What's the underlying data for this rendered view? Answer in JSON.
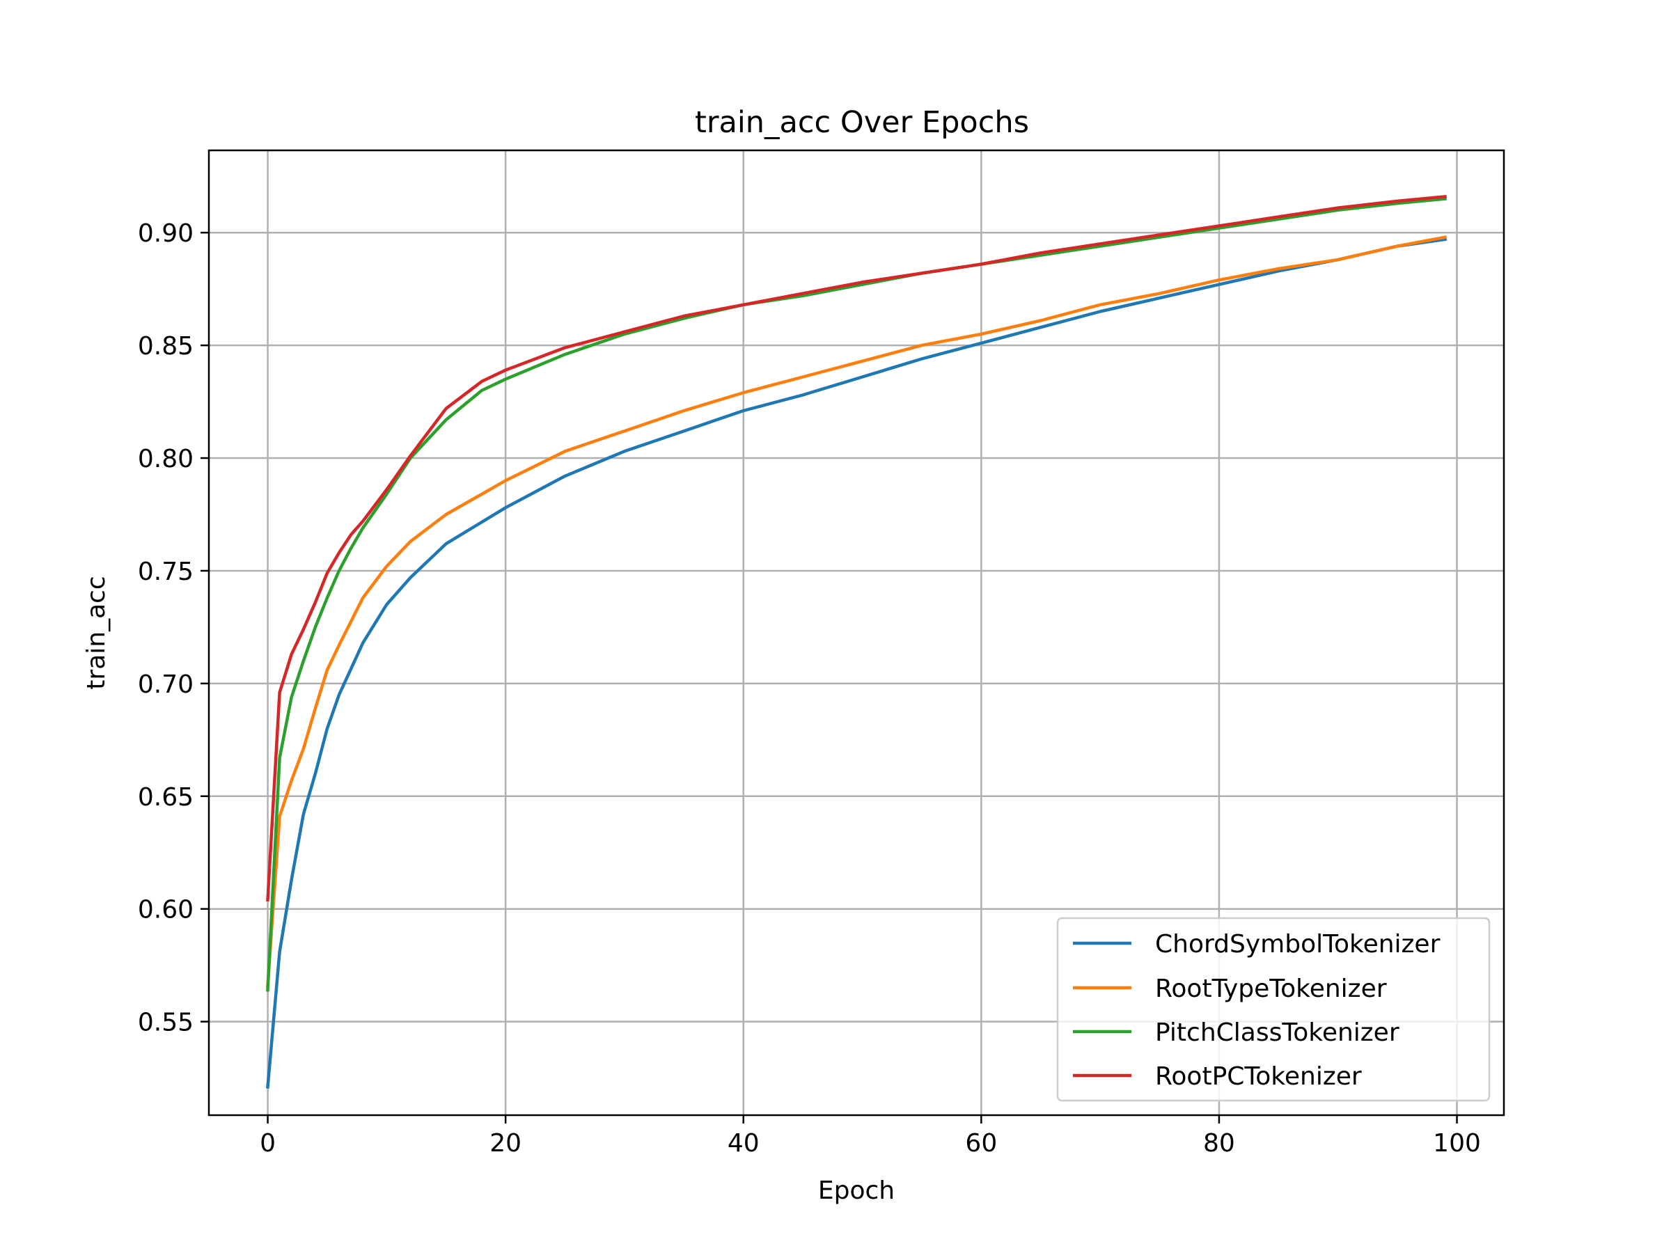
{
  "chart_data": {
    "type": "line",
    "title": "train_acc Over Epochs",
    "xlabel": "Epoch",
    "ylabel": "train_acc",
    "xlim": [
      -4.95,
      103.95
    ],
    "ylim": [
      0.5085,
      0.9365
    ],
    "xticks": [
      0,
      20,
      40,
      60,
      80,
      100
    ],
    "xtick_labels": [
      "0",
      "20",
      "40",
      "60",
      "80",
      "100"
    ],
    "yticks": [
      0.55,
      0.6,
      0.65,
      0.7,
      0.75,
      0.8,
      0.85,
      0.9
    ],
    "ytick_labels": [
      "0.55",
      "0.60",
      "0.65",
      "0.70",
      "0.75",
      "0.80",
      "0.85",
      "0.90"
    ],
    "grid": true,
    "legend_position": "lower-right",
    "series": [
      {
        "name": "ChordSymbolTokenizer",
        "color": "#1f77b4",
        "x": [
          0,
          1,
          2,
          3,
          4,
          5,
          6,
          8,
          10,
          12,
          15,
          20,
          25,
          30,
          35,
          40,
          45,
          50,
          55,
          60,
          65,
          70,
          75,
          80,
          85,
          90,
          95,
          99
        ],
        "y": [
          0.521,
          0.581,
          0.613,
          0.642,
          0.66,
          0.68,
          0.695,
          0.718,
          0.735,
          0.747,
          0.762,
          0.778,
          0.792,
          0.803,
          0.812,
          0.821,
          0.828,
          0.836,
          0.844,
          0.851,
          0.858,
          0.865,
          0.871,
          0.877,
          0.883,
          0.888,
          0.894,
          0.897
        ]
      },
      {
        "name": "RootTypeTokenizer",
        "color": "#ff7f0e",
        "x": [
          0,
          1,
          2,
          3,
          4,
          5,
          6,
          8,
          10,
          12,
          15,
          20,
          25,
          30,
          35,
          40,
          45,
          50,
          55,
          60,
          65,
          70,
          75,
          80,
          85,
          90,
          95,
          99
        ],
        "y": [
          0.566,
          0.641,
          0.657,
          0.671,
          0.689,
          0.706,
          0.717,
          0.738,
          0.752,
          0.763,
          0.775,
          0.79,
          0.803,
          0.812,
          0.821,
          0.829,
          0.836,
          0.843,
          0.85,
          0.855,
          0.861,
          0.868,
          0.873,
          0.879,
          0.884,
          0.888,
          0.894,
          0.898
        ]
      },
      {
        "name": "PitchClassTokenizer",
        "color": "#2ca02c",
        "x": [
          0,
          1,
          2,
          3,
          4,
          5,
          6,
          7,
          8,
          10,
          12,
          15,
          18,
          20,
          25,
          30,
          35,
          40,
          45,
          50,
          55,
          60,
          65,
          70,
          75,
          80,
          85,
          90,
          95,
          99
        ],
        "y": [
          0.564,
          0.667,
          0.694,
          0.71,
          0.725,
          0.738,
          0.75,
          0.76,
          0.769,
          0.784,
          0.8,
          0.817,
          0.83,
          0.835,
          0.846,
          0.855,
          0.862,
          0.868,
          0.872,
          0.877,
          0.882,
          0.886,
          0.89,
          0.894,
          0.898,
          0.902,
          0.906,
          0.91,
          0.913,
          0.915
        ]
      },
      {
        "name": "RootPCTokenizer",
        "color": "#d62728",
        "x": [
          0,
          1,
          2,
          3,
          4,
          5,
          6,
          7,
          8,
          10,
          12,
          15,
          18,
          20,
          25,
          30,
          35,
          40,
          45,
          50,
          55,
          60,
          65,
          70,
          75,
          80,
          85,
          90,
          95,
          99
        ],
        "y": [
          0.604,
          0.696,
          0.713,
          0.724,
          0.736,
          0.749,
          0.758,
          0.766,
          0.772,
          0.786,
          0.801,
          0.822,
          0.834,
          0.839,
          0.849,
          0.856,
          0.863,
          0.868,
          0.873,
          0.878,
          0.882,
          0.886,
          0.891,
          0.895,
          0.899,
          0.903,
          0.907,
          0.911,
          0.914,
          0.916
        ]
      }
    ]
  }
}
